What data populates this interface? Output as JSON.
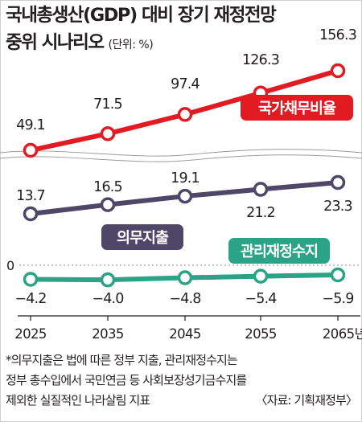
{
  "title_line1": "국내총생산(GDP) 대비 장기 재정전망",
  "title_line2": "중위 시나리오",
  "unit": "(단위: %)",
  "chart_data": {
    "type": "line",
    "categories": [
      "2025",
      "2035",
      "2045",
      "2055",
      "2065년"
    ],
    "series": [
      {
        "name": "국가채무비율",
        "values": [
          49.1,
          71.5,
          97.4,
          126.3,
          156.3
        ],
        "labels": [
          "49.1",
          "71.5",
          "97.4",
          "126.3",
          "156.3"
        ],
        "color": "#e21b23"
      },
      {
        "name": "의무지출",
        "values": [
          13.7,
          16.5,
          19.1,
          21.2,
          23.3
        ],
        "labels": [
          "13.7",
          "16.5",
          "19.1",
          "21.2",
          "23.3"
        ],
        "color": "#4f4768"
      },
      {
        "name": "관리재정수지",
        "values": [
          -4.2,
          -4.0,
          -4.8,
          -5.4,
          -5.9
        ],
        "labels": [
          "−4.2",
          "−4.0",
          "−4.8",
          "−5.4",
          "−5.9"
        ],
        "color": "#2aa386"
      }
    ],
    "zero_label": "0",
    "axis_break": true,
    "grid": false,
    "legend": "inline labels"
  },
  "notes": [
    "*의무지출은 법에 따른 정부 지출, 관리재정수지는",
    "정부 총수입에서 국민연금 등 사회보장성기금수지를",
    "제외한 실질적인 나라살림 지표"
  ],
  "source": "〈자료: 기획재정부〉"
}
